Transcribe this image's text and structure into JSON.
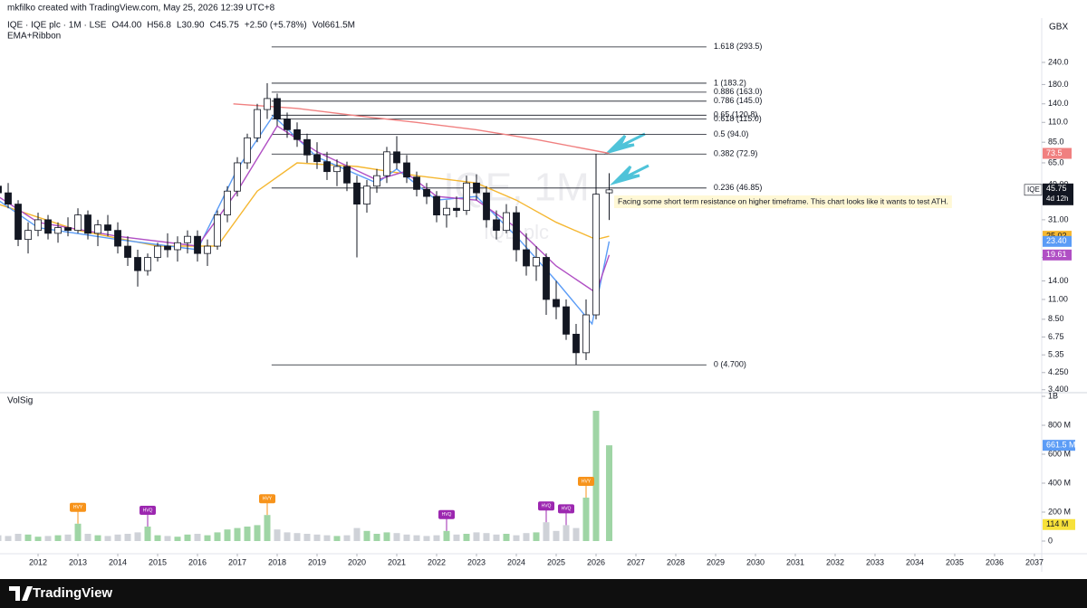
{
  "credit": "mkfilko created with TradingView.com, May 25, 2026 12:39 UTC+8",
  "brand": "TradingView",
  "chart_data": {
    "type": "candlestick",
    "header": [
      "IQE · IQE plc · 1M · LSE",
      "O44.00",
      "H56.8",
      "L30.90",
      "C45.75",
      "+2.50 (+5.78%)",
      "Vol661.5M"
    ],
    "indicator": "EMA+Ribbon",
    "currency": "GBX",
    "watermark": [
      "IQE, 1M",
      "IQE plc"
    ],
    "log": true,
    "up_color": "#ffffff",
    "down_color": "#131722",
    "wick_color": "#131722",
    "x": [
      2011.0,
      2011.25,
      2011.5,
      2011.75,
      2012.0,
      2012.25,
      2012.5,
      2012.75,
      2013.0,
      2013.25,
      2013.5,
      2013.75,
      2014.0,
      2014.25,
      2014.5,
      2014.75,
      2015.0,
      2015.25,
      2015.5,
      2015.75,
      2016.0,
      2016.25,
      2016.5,
      2016.75,
      2017.0,
      2017.25,
      2017.5,
      2017.75,
      2018.0,
      2018.25,
      2018.5,
      2018.75,
      2019.0,
      2019.25,
      2019.5,
      2019.75,
      2020.0,
      2020.25,
      2020.5,
      2020.75,
      2021.0,
      2021.25,
      2021.5,
      2021.75,
      2022.0,
      2022.25,
      2022.5,
      2022.75,
      2023.0,
      2023.25,
      2023.5,
      2023.75,
      2024.0,
      2024.25,
      2024.5,
      2024.75,
      2025.0,
      2025.25,
      2025.5,
      2025.75,
      2026.0,
      2026.33
    ],
    "open": [
      48,
      44,
      38,
      24,
      27,
      31,
      26,
      28,
      27,
      33,
      26,
      29,
      27,
      22,
      19,
      16,
      19,
      22,
      21,
      23,
      25,
      20,
      22,
      33,
      45,
      65,
      90,
      130,
      150,
      115,
      100,
      88,
      72,
      66,
      58,
      62,
      50,
      38,
      48,
      55,
      75,
      65,
      54,
      46,
      42,
      33,
      36,
      35,
      50,
      44,
      31,
      27,
      34,
      21,
      17,
      19,
      11,
      10,
      7,
      5.5,
      9,
      44
    ],
    "high": [
      55,
      50,
      40,
      30,
      34,
      33,
      30,
      32,
      36,
      35,
      31,
      33,
      30,
      25,
      21,
      20,
      23,
      26,
      25,
      27,
      27,
      24,
      35,
      48,
      70,
      95,
      140,
      183.2,
      160,
      125,
      110,
      95,
      85,
      75,
      68,
      66,
      55,
      52,
      60,
      80,
      92,
      72,
      58,
      50,
      45,
      40,
      42,
      55,
      56,
      48,
      35,
      38,
      37,
      26,
      22,
      20,
      14,
      11,
      8,
      11,
      72.9,
      56.8
    ],
    "low": [
      42,
      36,
      22,
      20,
      25,
      24,
      23,
      25,
      26,
      24,
      22,
      25,
      20,
      17,
      13,
      15,
      18,
      19,
      18,
      20,
      18,
      17,
      21,
      30,
      42,
      60,
      85,
      115,
      105,
      90,
      80,
      65,
      60,
      52,
      48,
      45,
      19,
      34,
      44,
      50,
      60,
      50,
      42,
      38,
      30,
      28,
      32,
      33,
      40,
      28,
      24,
      26,
      18,
      15,
      14,
      9,
      8.5,
      6.5,
      4.7,
      5,
      8.5,
      30.9
    ],
    "close": [
      44,
      38,
      24,
      27,
      31,
      26,
      28,
      27,
      33,
      26,
      29,
      27,
      22,
      19,
      16,
      19,
      22,
      21,
      23,
      25,
      20,
      22,
      33,
      45,
      65,
      90,
      130,
      150,
      115,
      100,
      88,
      72,
      66,
      58,
      62,
      50,
      38,
      48,
      55,
      75,
      65,
      54,
      46,
      42,
      33,
      36,
      35,
      50,
      44,
      31,
      27,
      34,
      21,
      17,
      19,
      11,
      10,
      7,
      5.5,
      9,
      43.25,
      45.75
    ],
    "xlim": [
      2011.045,
      2037.182
    ],
    "xticks": [
      2012,
      2013,
      2014,
      2015,
      2016,
      2017,
      2018,
      2019,
      2020,
      2021,
      2022,
      2023,
      2024,
      2025,
      2026,
      2027,
      2028,
      2029,
      2030,
      2031,
      2032,
      2033,
      2034,
      2035,
      2036,
      2037
    ],
    "ylim": [
      3.35,
      427
    ],
    "yticks": [
      {
        "value": 240,
        "label": "240.0"
      },
      {
        "value": 180,
        "label": "180.0"
      },
      {
        "value": 140,
        "label": "140.0"
      },
      {
        "value": 110,
        "label": "110.0"
      },
      {
        "value": 85,
        "label": "85.0"
      },
      {
        "value": 65,
        "label": "65.0"
      },
      {
        "value": 49,
        "label": "49.00"
      },
      {
        "value": 31,
        "label": "31.00"
      },
      {
        "value": 19,
        "label": "19.00"
      },
      {
        "value": 14,
        "label": "14.00"
      },
      {
        "value": 11,
        "label": "11.00"
      },
      {
        "value": 8.5,
        "label": "8.50"
      },
      {
        "value": 6.75,
        "label": "6.75"
      },
      {
        "value": 5.35,
        "label": "5.35"
      },
      {
        "value": 4.25,
        "label": "4.250"
      },
      {
        "value": 3.4,
        "label": "3.400"
      }
    ],
    "fib_x": [
      2017.86,
      2028.77
    ],
    "fib_levels": [
      {
        "value": 293.5,
        "label": "1.618 (293.5)"
      },
      {
        "value": 183.2,
        "label": "1 (183.2)"
      },
      {
        "value": 163.0,
        "label": "0.886 (163.0)"
      },
      {
        "value": 145.0,
        "label": "0.786 (145.0)"
      },
      {
        "value": 120.8,
        "label": "0.65 (120.8)"
      },
      {
        "value": 115.0,
        "label": "0.618 (115.0)"
      },
      {
        "value": 94.0,
        "label": "0.5 (94.0)"
      },
      {
        "value": 72.9,
        "label": "0.382 (72.9)"
      },
      {
        "value": 46.85,
        "label": "0.236 (46.85)"
      },
      {
        "value": 4.7,
        "label": "0 (4.700)"
      }
    ],
    "series": [
      {
        "color": "#f08080",
        "x": [
          2016.9,
          2018.5,
          2020,
          2021.5,
          2023,
          2024.5,
          2026.33
        ],
        "values": [
          140,
          132,
          120,
          110,
          100,
          88,
          73.5
        ]
      },
      {
        "color": "#f5b731",
        "x": [
          2011,
          2013,
          2015,
          2016.5,
          2017.5,
          2018.5,
          2020,
          2021.5,
          2023,
          2024,
          2025,
          2026,
          2026.33
        ],
        "values": [
          38,
          27,
          22,
          22,
          45,
          65,
          62,
          55,
          50,
          40,
          30,
          24,
          25.02
        ]
      },
      {
        "color": "#5b9cf6",
        "x": [
          2011,
          2012,
          2014,
          2016,
          2017,
          2017.9,
          2019,
          2020.5,
          2021,
          2022,
          2023,
          2024,
          2025,
          2025.9,
          2026.33
        ],
        "values": [
          40,
          28,
          24,
          21,
          60,
          120,
          70,
          50,
          60,
          40,
          42,
          25,
          14,
          8,
          23.4
        ]
      },
      {
        "color": "#b04fc4",
        "x": [
          2011,
          2012,
          2014,
          2016,
          2017,
          2018,
          2019,
          2020.5,
          2021.2,
          2022,
          2023,
          2024,
          2025,
          2026,
          2026.33
        ],
        "values": [
          42,
          30,
          25,
          22,
          45,
          105,
          75,
          52,
          58,
          42,
          40,
          28,
          17,
          12,
          19.61
        ]
      }
    ],
    "price_tags": [
      {
        "value": 73.5,
        "label": "73.5",
        "color": "#f08080"
      },
      {
        "value": 25.02,
        "label": "25.02",
        "color": "#f5b731"
      },
      {
        "value": 23.4,
        "label": "23.40",
        "color": "#5b9cf6"
      },
      {
        "value": 19.61,
        "label": "19.61",
        "color": "#b04fc4"
      }
    ],
    "last": {
      "ticker": "IQE",
      "value": 45.75,
      "label": "45.75",
      "countdown": "4d 12h"
    },
    "annotation": "Facing some short term resistance on higher timeframe. This chart looks like it wants to test ATH.",
    "volume": {
      "title": "VolSig",
      "up_color": "#9fd5a5",
      "down_color": "#cfd2d8",
      "values": [
        40,
        35,
        50,
        45,
        30,
        35,
        40,
        45,
        120,
        50,
        40,
        35,
        45,
        50,
        60,
        100,
        40,
        35,
        30,
        45,
        50,
        40,
        60,
        80,
        90,
        100,
        110,
        180,
        80,
        60,
        55,
        50,
        45,
        40,
        35,
        40,
        90,
        70,
        50,
        60,
        55,
        45,
        40,
        35,
        40,
        70,
        45,
        50,
        60,
        55,
        45,
        50,
        40,
        55,
        60,
        130,
        70,
        110,
        90,
        300,
        900,
        661.5
      ],
      "ylim": [
        -75,
        1019
      ],
      "yticks": [
        {
          "value": 1000,
          "label": "1B"
        },
        {
          "value": 800,
          "label": "800 M"
        },
        {
          "value": 600,
          "label": "600 M"
        },
        {
          "value": 400,
          "label": "400 M"
        },
        {
          "value": 200,
          "label": "200 M"
        },
        0
      ],
      "tags": [
        {
          "value": 661.5,
          "label": "661.5 M",
          "color": "#5b9cf6"
        },
        {
          "value": 114,
          "label": "114 M",
          "color": "#f7e13a"
        }
      ],
      "signals": [
        {
          "x": 2013.0,
          "label": "HVY",
          "color": "#f7931a"
        },
        {
          "x": 2014.75,
          "label": "HVQ",
          "color": "#9c27b0"
        },
        {
          "x": 2017.75,
          "label": "HVY",
          "color": "#f7931a"
        },
        {
          "x": 2022.25,
          "label": "HVQ",
          "color": "#9c27b0"
        },
        {
          "x": 2024.75,
          "label": "HVQ",
          "color": "#9c27b0"
        },
        {
          "x": 2025.25,
          "label": "HVQ",
          "color": "#9c27b0"
        },
        {
          "x": 2025.75,
          "label": "HVY",
          "color": "#f7931a"
        }
      ]
    }
  }
}
